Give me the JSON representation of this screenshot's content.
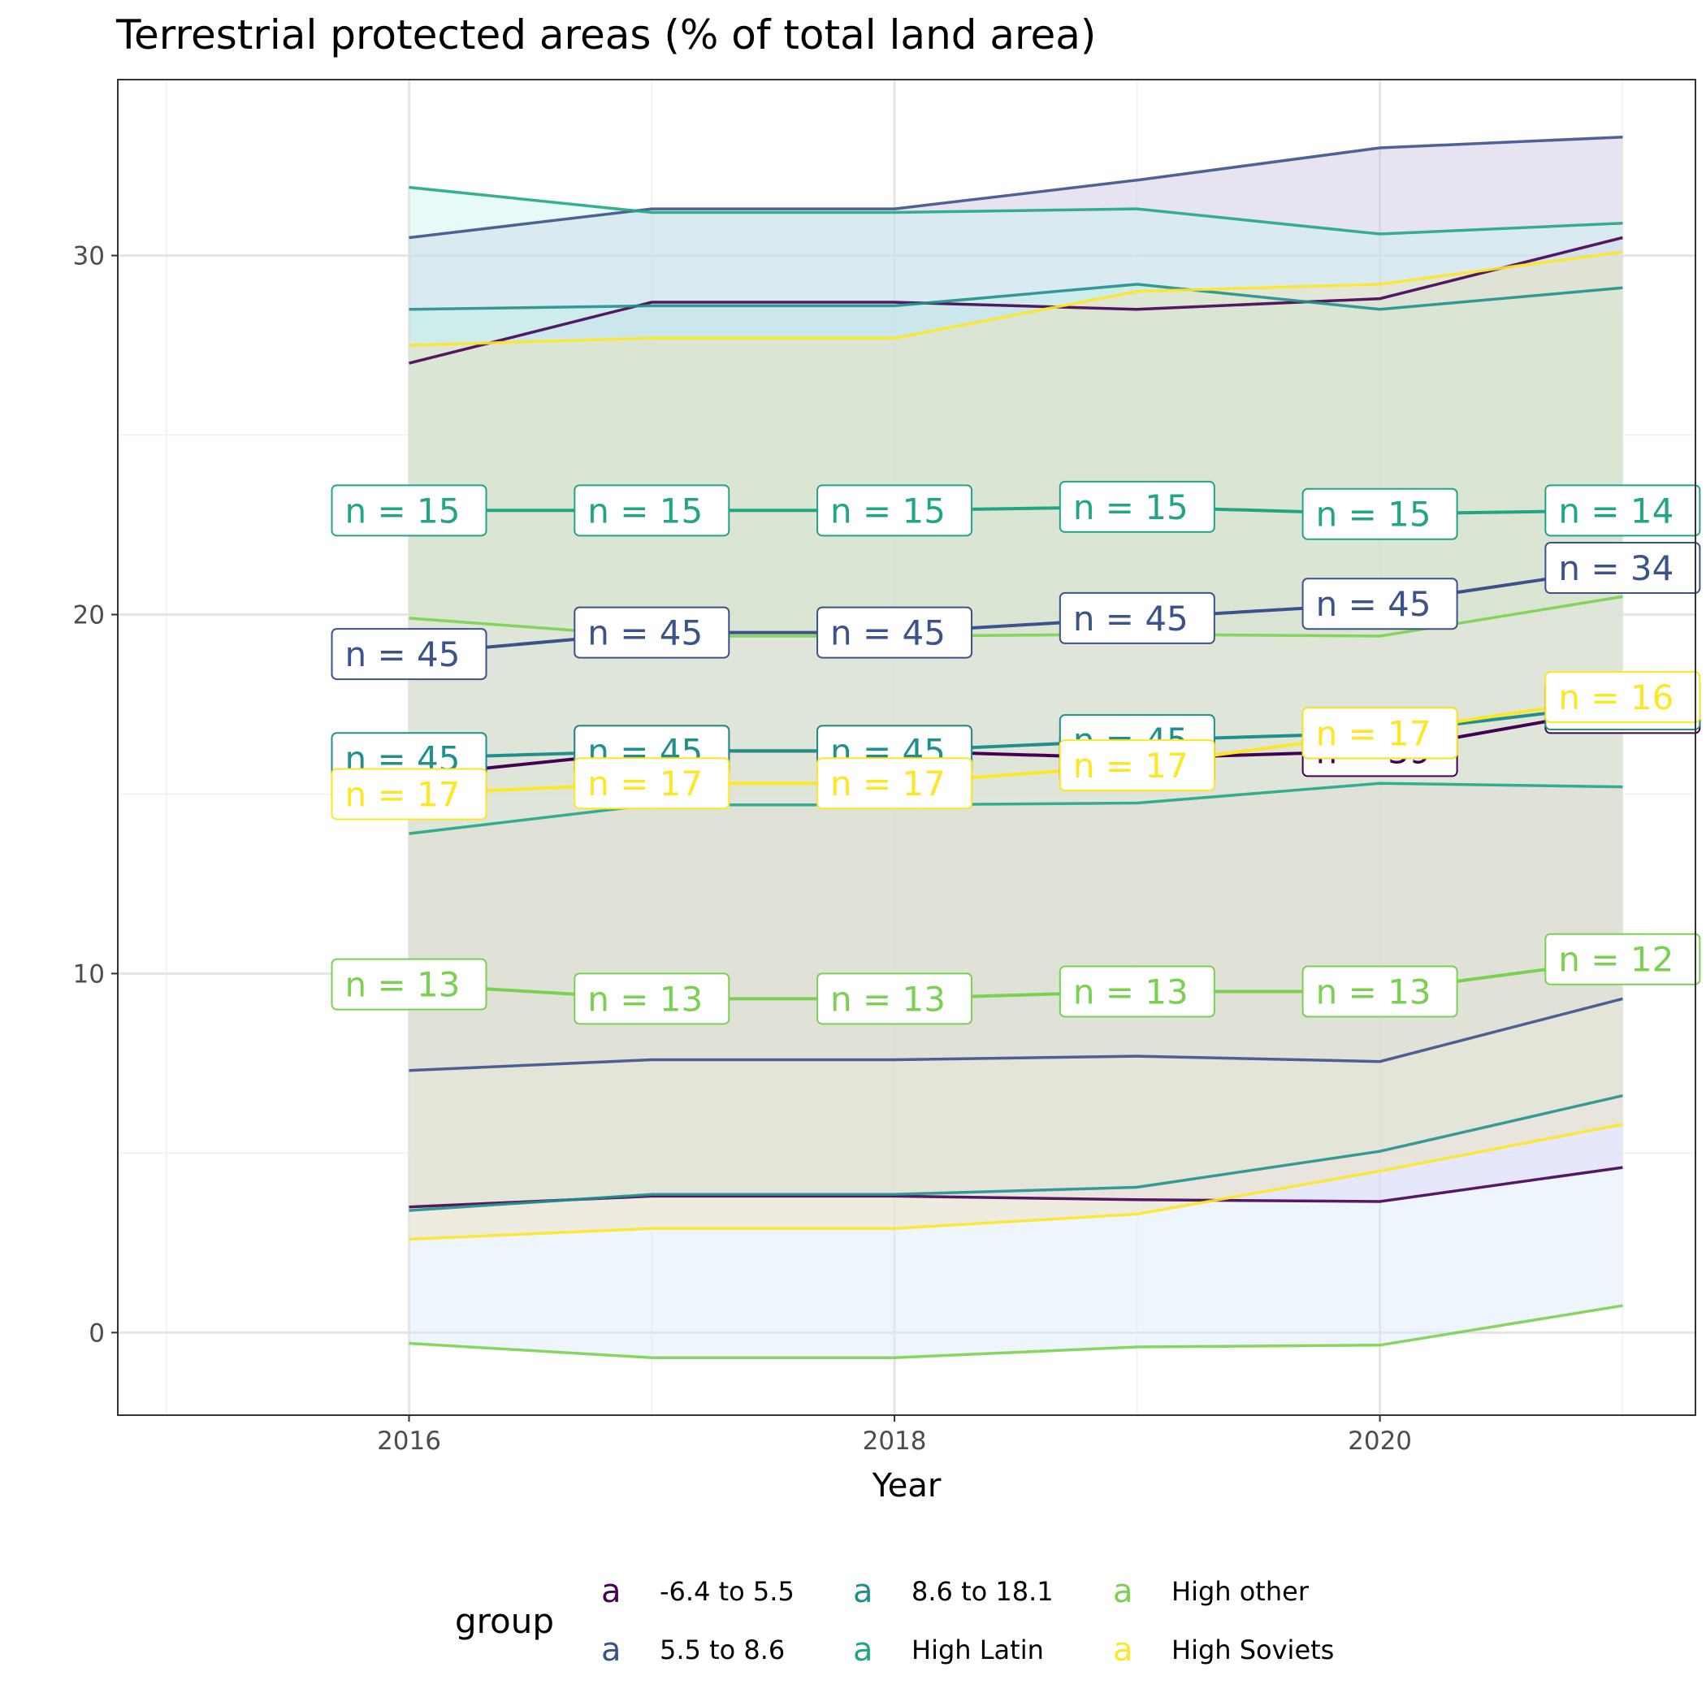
{
  "chart_data": {
    "type": "line",
    "title": "Terrestrial protected areas (% of total land area)",
    "xlabel": "Year",
    "ylabel": "",
    "xlim": [
      2014.8,
      2021.3
    ],
    "ylim": [
      -2.3,
      34.9
    ],
    "x_ticks": [
      2016,
      2018,
      2020
    ],
    "y_ticks": [
      0,
      10,
      20,
      30
    ],
    "grid": true,
    "x": [
      2016,
      2017,
      2018,
      2019,
      2020,
      2021
    ],
    "legend": {
      "title": "group",
      "position": "bottom",
      "key_glyph": "a",
      "entries": [
        "-6.4 to 5.5",
        "5.5 to 8.6",
        "8.6 to 18.1",
        "High Latin",
        "High other",
        "High Soviets"
      ]
    },
    "series": [
      {
        "name": "-6.4 to 5.5",
        "color": "#440154",
        "fill": "#d9c7f2",
        "mean": [
          15.5,
          16.2,
          16.2,
          16.0,
          16.2,
          17.4
        ],
        "lower": [
          3.5,
          3.8,
          3.8,
          3.7,
          3.65,
          4.6
        ],
        "upper": [
          27.0,
          28.7,
          28.7,
          28.5,
          28.8,
          30.5
        ],
        "n_labels": [
          "n = 45",
          "n = 45",
          "n = 45",
          "n = 45",
          "n = 39",
          "n = 34"
        ]
      },
      {
        "name": "5.5 to 8.6",
        "color": "#3b528b",
        "fill": "#c9c2dd",
        "mean": [
          18.9,
          19.5,
          19.5,
          19.9,
          20.3,
          21.3
        ],
        "lower": [
          7.3,
          7.6,
          7.6,
          7.7,
          7.55,
          9.3
        ],
        "upper": [
          30.5,
          31.3,
          31.3,
          32.1,
          33.0,
          33.3
        ],
        "n_labels": [
          "n = 45",
          "n = 45",
          "n = 45",
          "n = 45",
          "n = 45",
          "n = 34"
        ]
      },
      {
        "name": "8.6 to 18.1",
        "color": "#21908c",
        "fill": "#bfe7e2",
        "mean": [
          16.0,
          16.2,
          16.2,
          16.5,
          16.7,
          17.5
        ],
        "lower": [
          3.4,
          3.85,
          3.85,
          4.05,
          5.05,
          6.6
        ],
        "upper": [
          28.5,
          28.6,
          28.6,
          29.2,
          28.5,
          29.1
        ],
        "n_labels": [
          "n = 45",
          "n = 45",
          "n = 45",
          "n = 45",
          "n = 45",
          "n = 34"
        ]
      },
      {
        "name": "High Latin",
        "color": "#21a685",
        "fill": "#c7f3f0",
        "mean": [
          22.9,
          22.9,
          22.9,
          23.0,
          22.8,
          22.9
        ],
        "lower": [
          13.9,
          14.7,
          14.7,
          14.75,
          15.3,
          15.2
        ],
        "upper": [
          31.9,
          31.2,
          31.2,
          31.3,
          30.6,
          30.9
        ],
        "n_labels": [
          "n = 15",
          "n = 15",
          "n = 15",
          "n = 15",
          "n = 15",
          "n = 14"
        ]
      },
      {
        "name": "High other",
        "color": "#7ad151",
        "fill": "#dbe8fb",
        "mean": [
          9.7,
          9.3,
          9.3,
          9.5,
          9.5,
          10.4
        ],
        "lower": [
          -0.3,
          -0.7,
          -0.7,
          -0.4,
          -0.35,
          0.75
        ],
        "upper": [
          19.9,
          19.4,
          19.4,
          19.45,
          19.4,
          20.5
        ],
        "n_labels": [
          "n = 13",
          "n = 13",
          "n = 13",
          "n = 13",
          "n = 13",
          "n = 12"
        ]
      },
      {
        "name": "High Soviets",
        "color": "#fde725",
        "fill": "#eee3b8",
        "mean": [
          15.0,
          15.3,
          15.3,
          15.8,
          16.7,
          17.7
        ],
        "lower": [
          2.6,
          2.9,
          2.9,
          3.3,
          4.5,
          5.8
        ],
        "upper": [
          27.5,
          27.7,
          27.7,
          29.0,
          29.2,
          30.1
        ],
        "n_labels": [
          "n = 17",
          "n = 17",
          "n = 17",
          "n = 17",
          "n = 17",
          "n = 16"
        ]
      }
    ]
  }
}
